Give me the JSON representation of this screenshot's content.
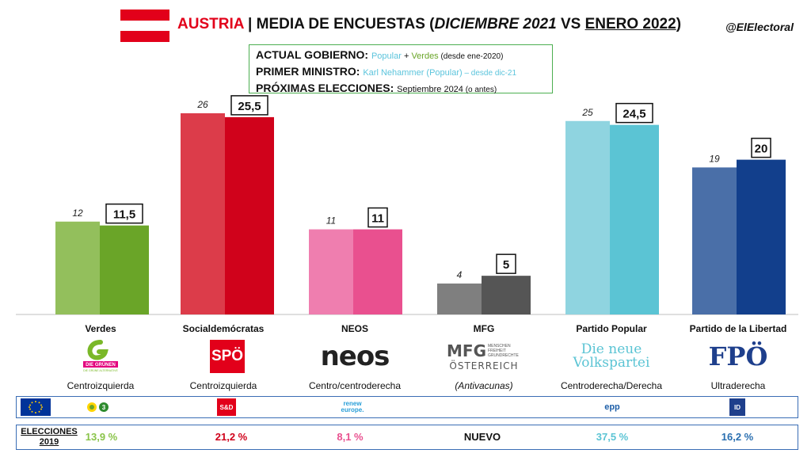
{
  "header": {
    "country": "AUSTRIA",
    "title_separator": "|",
    "title_main": "MEDIA DE ENCUESTAS (",
    "title_prev": "DICIEMBRE 2021",
    "title_vs": " VS ",
    "title_curr": "ENERO 2022",
    "title_end": ")",
    "handle": "@ElElectoral"
  },
  "info": {
    "gov_label": "ACTUAL GOBIERNO:",
    "gov_p1": "Popular",
    "gov_plus": " + ",
    "gov_p2": "Verdes",
    "gov_note": " (desde ene-2020)",
    "pm_label": "PRIMER MINISTRO:",
    "pm_name": "Karl Nehammer (Popular)",
    "pm_note": " – desde dic-21",
    "el_label": "PRÓXIMAS ELECCIONES:",
    "el_value": "Septiembre 2024",
    "el_note": " (o antes)"
  },
  "chart_data": {
    "type": "bar",
    "categories": [
      "Verdes",
      "Socialdemócratas",
      "NEOS",
      "MFG",
      "Partido Popular",
      "Partido de la Libertad"
    ],
    "series": [
      {
        "name": "Diciembre 2021",
        "values": [
          12,
          26,
          11,
          4,
          25,
          19
        ]
      },
      {
        "name": "Enero 2022",
        "values": [
          11.5,
          25.5,
          11,
          5,
          24.5,
          20
        ]
      }
    ],
    "prev_labels": [
      "12",
      "26",
      "11",
      "4",
      "25",
      "19"
    ],
    "curr_labels": [
      "11,5",
      "25,5",
      "11",
      "5",
      "24,5",
      "20"
    ],
    "colors_prev": [
      "#93bf5c",
      "#dc3c4a",
      "#ef7eaf",
      "#7f7f7f",
      "#8fd4e0",
      "#4a6fa8"
    ],
    "colors_curr": [
      "#6aa528",
      "#d0021b",
      "#e9508f",
      "#555555",
      "#5bc4d4",
      "#123f8c"
    ],
    "ylim": [
      0,
      26
    ]
  },
  "parties": [
    {
      "name": "Verdes",
      "ideology": "Centroizquierda",
      "result_2019": "13,9 %",
      "result_color": "#8ac44a",
      "logo": "DIE GRÜNEN",
      "logo_sub": "DIE GRÜNE ALTERNATIVE",
      "eu_group": "greens-efa"
    },
    {
      "name": "Socialdemócratas",
      "ideology": "Centroizquierda",
      "result_2019": "21,2 %",
      "result_color": "#d0021b",
      "logo": "SPÖ",
      "eu_group": "S&D"
    },
    {
      "name": "NEOS",
      "ideology": "Centro/centroderecha",
      "result_2019": "8,1 %",
      "result_color": "#e9508f",
      "logo": "neos",
      "eu_group": "renew europe."
    },
    {
      "name": "MFG",
      "ideology": "(Antivacunas)",
      "result_2019": "NUEVO",
      "result_color": "#111111",
      "logo": "MFG",
      "logo_sub": "MENSCHEN FREIHEIT GRUNDRECHTE",
      "logo_sub2": "ÖSTERREICH",
      "eu_group": ""
    },
    {
      "name": "Partido Popular",
      "ideology": "Centroderecha/Derecha",
      "result_2019": "37,5 %",
      "result_color": "#5bc4d4",
      "logo": "Die neue",
      "logo_sub": "Volkspartei",
      "eu_group": "epp"
    },
    {
      "name": "Partido de la Libertad",
      "ideology": "Ultraderecha",
      "result_2019": "16,2 %",
      "result_color": "#2a6fb0",
      "logo": "FPÖ",
      "eu_group": "ID"
    }
  ],
  "elections_label_1": "ELECCIONES",
  "elections_label_2": "2019",
  "icons": {
    "eu_flag": "eu-flag-icon",
    "austria_flag": "austria-flag-icon"
  }
}
